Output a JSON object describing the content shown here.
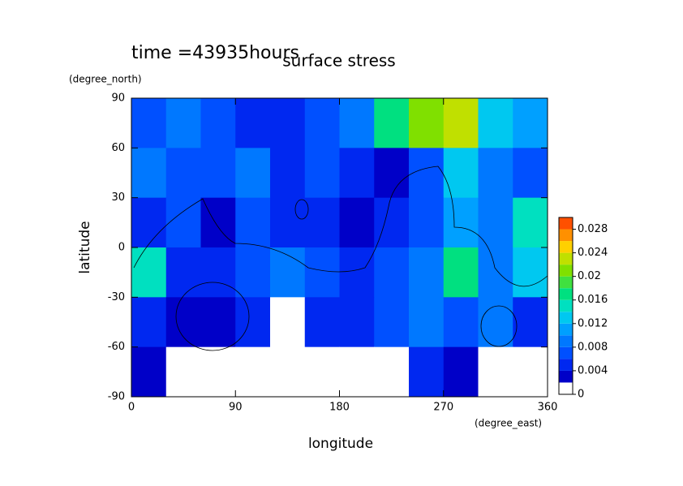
{
  "chart_data": {
    "type": "heatmap",
    "title": "surface stress",
    "subtitle": "time =43935hours",
    "x_label": "longitude",
    "x_unit": "(degree_east)",
    "y_label": "latitude",
    "y_unit": "(degree_north)",
    "xlim": [
      0,
      360
    ],
    "ylim": [
      -90,
      90
    ],
    "xticks": [
      0,
      90,
      180,
      270,
      360
    ],
    "yticks": [
      -90,
      -60,
      -30,
      0,
      30,
      60,
      90
    ],
    "x": [
      15,
      45,
      75,
      105,
      135,
      165,
      195,
      225,
      255,
      285,
      315,
      345
    ],
    "y": [
      75,
      45,
      15,
      -15,
      -45,
      -75
    ],
    "values": [
      [
        0.006,
        0.008,
        0.006,
        0.004,
        0.004,
        0.006,
        0.008,
        0.016,
        0.02,
        0.022,
        0.012,
        0.01
      ],
      [
        0.008,
        0.006,
        0.006,
        0.008,
        0.004,
        0.006,
        0.004,
        0.002,
        0.006,
        0.012,
        0.008,
        0.006
      ],
      [
        0.004,
        0.006,
        0.002,
        0.006,
        0.004,
        0.004,
        0.002,
        0.004,
        0.006,
        0.01,
        0.008,
        0.014
      ],
      [
        0.014,
        0.004,
        0.004,
        0.006,
        0.008,
        0.006,
        0.004,
        0.006,
        0.008,
        0.016,
        0.008,
        0.012
      ],
      [
        0.004,
        0.002,
        0.002,
        0.004,
        0,
        0.004,
        0.004,
        0.006,
        0.008,
        0.006,
        0.008,
        0.004
      ],
      [
        0.002,
        0,
        0,
        0,
        0,
        0,
        0,
        0,
        0.004,
        0.002,
        0,
        0
      ]
    ],
    "levels": [
      0,
      0.002,
      0.004,
      0.006,
      0.008,
      0.01,
      0.012,
      0.014,
      0.016,
      0.018,
      0.02,
      0.022,
      0.024,
      0.026,
      0.028,
      0.03
    ],
    "colors": [
      "#ffffff",
      "#0000c8",
      "#0028f0",
      "#0050ff",
      "#0078ff",
      "#00a0ff",
      "#00c8f0",
      "#00e0c0",
      "#00e080",
      "#40e040",
      "#80e000",
      "#c0e000",
      "#ffd000",
      "#ff9000",
      "#ff5000"
    ],
    "colorbar_ticks": [
      0,
      0.004,
      0.008,
      0.012,
      0.016,
      0.02,
      0.024,
      0.028
    ]
  }
}
